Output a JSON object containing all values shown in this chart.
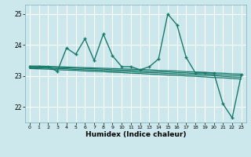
{
  "x": [
    0,
    1,
    2,
    3,
    4,
    5,
    6,
    7,
    8,
    9,
    10,
    11,
    12,
    13,
    14,
    15,
    16,
    17,
    18,
    19,
    20,
    21,
    22,
    23
  ],
  "y_main": [
    23.3,
    23.3,
    23.3,
    23.15,
    23.9,
    23.7,
    24.2,
    23.5,
    24.35,
    23.65,
    23.3,
    23.3,
    23.2,
    23.3,
    23.55,
    25.0,
    24.65,
    23.6,
    23.1,
    23.1,
    23.1,
    22.1,
    21.65,
    23.05
  ],
  "y_trend1": [
    23.32,
    23.32,
    23.31,
    23.3,
    23.29,
    23.28,
    23.27,
    23.26,
    23.25,
    23.24,
    23.23,
    23.22,
    23.21,
    23.2,
    23.18,
    23.17,
    23.16,
    23.14,
    23.13,
    23.12,
    23.1,
    23.09,
    23.07,
    23.06
  ],
  "y_trend2": [
    23.3,
    23.29,
    23.28,
    23.27,
    23.26,
    23.25,
    23.24,
    23.23,
    23.22,
    23.2,
    23.19,
    23.18,
    23.17,
    23.15,
    23.14,
    23.13,
    23.11,
    23.1,
    23.08,
    23.07,
    23.05,
    23.04,
    23.02,
    23.01
  ],
  "y_trend3": [
    23.27,
    23.26,
    23.25,
    23.24,
    23.23,
    23.21,
    23.2,
    23.19,
    23.18,
    23.16,
    23.15,
    23.14,
    23.12,
    23.11,
    23.1,
    23.08,
    23.07,
    23.05,
    23.04,
    23.02,
    23.01,
    22.99,
    22.97,
    22.96
  ],
  "y_trend4": [
    23.24,
    23.23,
    23.22,
    23.2,
    23.19,
    23.18,
    23.16,
    23.15,
    23.14,
    23.12,
    23.11,
    23.09,
    23.08,
    23.06,
    23.05,
    23.03,
    23.02,
    23.0,
    22.99,
    22.97,
    22.95,
    22.94,
    22.92,
    22.9
  ],
  "line_color": "#1a7a6a",
  "bg_color": "#cce8ec",
  "grid_color": "#b0d8de",
  "xlabel": "Humidex (Indice chaleur)",
  "ylim": [
    21.5,
    25.3
  ],
  "xlim": [
    -0.5,
    23.5
  ],
  "yticks": [
    22,
    23,
    24,
    25
  ],
  "xticks": [
    0,
    1,
    2,
    3,
    4,
    5,
    6,
    7,
    8,
    9,
    10,
    11,
    12,
    13,
    14,
    15,
    16,
    17,
    18,
    19,
    20,
    21,
    22,
    23
  ]
}
